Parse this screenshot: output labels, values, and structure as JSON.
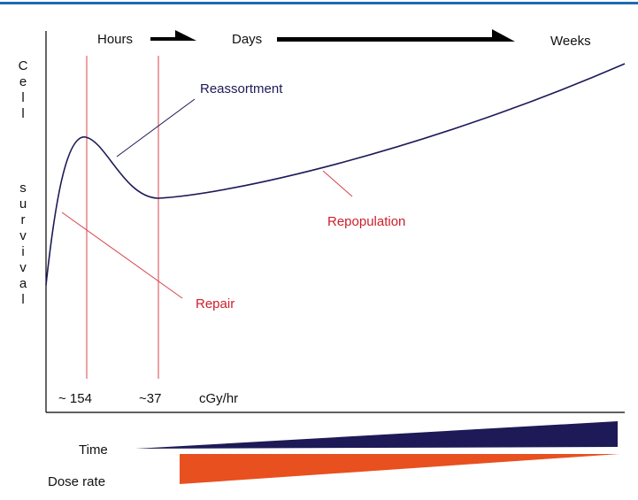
{
  "time_scale": {
    "hours": "Hours",
    "days": "Days",
    "weeks": "Weeks"
  },
  "y_axis": {
    "line1": "Cell",
    "line2": "survival"
  },
  "labels": {
    "reassortment": "Reassortment",
    "repopulation": "Repopulation",
    "repair": "Repair"
  },
  "dose_rates": {
    "first": "~ 154",
    "second": "~37",
    "unit": "cGy/hr"
  },
  "legend": {
    "time": "Time",
    "dose_rate": "Dose rate"
  }
}
